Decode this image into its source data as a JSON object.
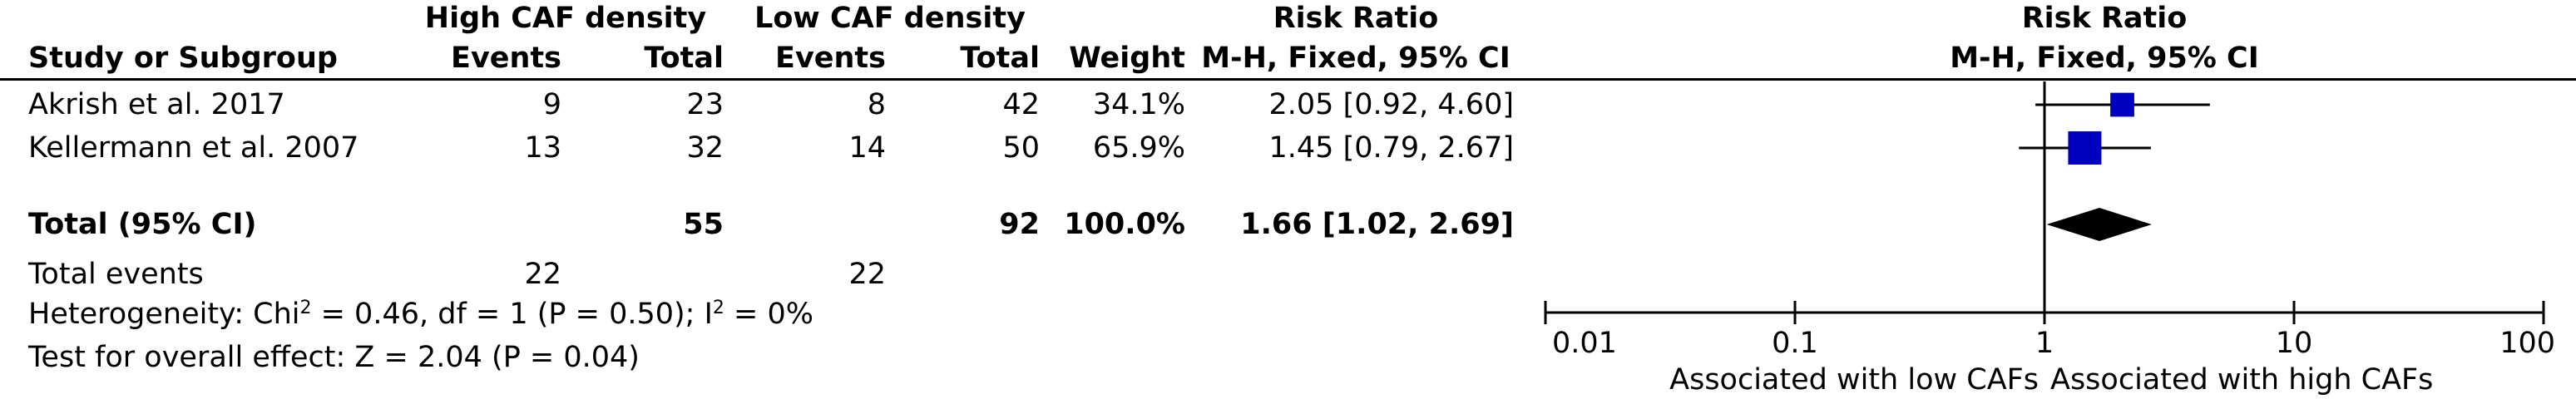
{
  "header": {
    "group1": "High CAF density",
    "group2": "Low CAF density",
    "rr_table": "Risk Ratio",
    "rr_plot": "Risk Ratio",
    "study_col": "Study or Subgroup",
    "events1": "Events",
    "total1": "Total",
    "events2": "Events",
    "total2": "Total",
    "weight": "Weight",
    "method_table": "M-H, Fixed, 95% CI",
    "method_plot": "M-H, Fixed, 95% CI"
  },
  "studies": [
    {
      "name": "Akrish et al. 2017",
      "events1": "9",
      "total1": "23",
      "events2": "8",
      "total2": "42",
      "weight": "34.1%",
      "ci_text": "2.05 [0.92, 4.60]"
    },
    {
      "name": "Kellermann et al. 2007",
      "events1": "13",
      "total1": "32",
      "events2": "14",
      "total2": "50",
      "weight": "65.9%",
      "ci_text": "1.45 [0.79, 2.67]"
    }
  ],
  "total": {
    "label": "Total (95% CI)",
    "total1": "55",
    "total2": "92",
    "weight": "100.0%",
    "ci_text": "1.66 [1.02, 2.69]"
  },
  "total_events": {
    "label": "Total events",
    "events1": "22",
    "events2": "22"
  },
  "heterogeneity": {
    "pre": "Heterogeneity: Chi",
    "sup1": "2",
    "mid": " = 0.46, df = 1 (P = 0.50); I",
    "sup2": "2",
    "post": " = 0%"
  },
  "overall_effect": "Test for overall effect: Z = 2.04 (P = 0.04)",
  "chart_data": {
    "type": "forest",
    "x_scale": "log",
    "xlim": [
      0.01,
      100
    ],
    "ticks": [
      {
        "value": 0.01,
        "label": "0.01"
      },
      {
        "value": 0.1,
        "label": "0.1"
      },
      {
        "value": 1,
        "label": "1"
      },
      {
        "value": 10,
        "label": "10"
      },
      {
        "value": 100,
        "label": "100"
      }
    ],
    "left_label": "Associated with low CAFs",
    "right_label": "Associated with high CAFs",
    "marker_color": "#0000c0",
    "studies": [
      {
        "estimate": 2.05,
        "lower": 0.92,
        "upper": 4.6,
        "weight": 34.1
      },
      {
        "estimate": 1.45,
        "lower": 0.79,
        "upper": 2.67,
        "weight": 65.9
      }
    ],
    "pooled": {
      "estimate": 1.66,
      "lower": 1.02,
      "upper": 2.69
    }
  }
}
